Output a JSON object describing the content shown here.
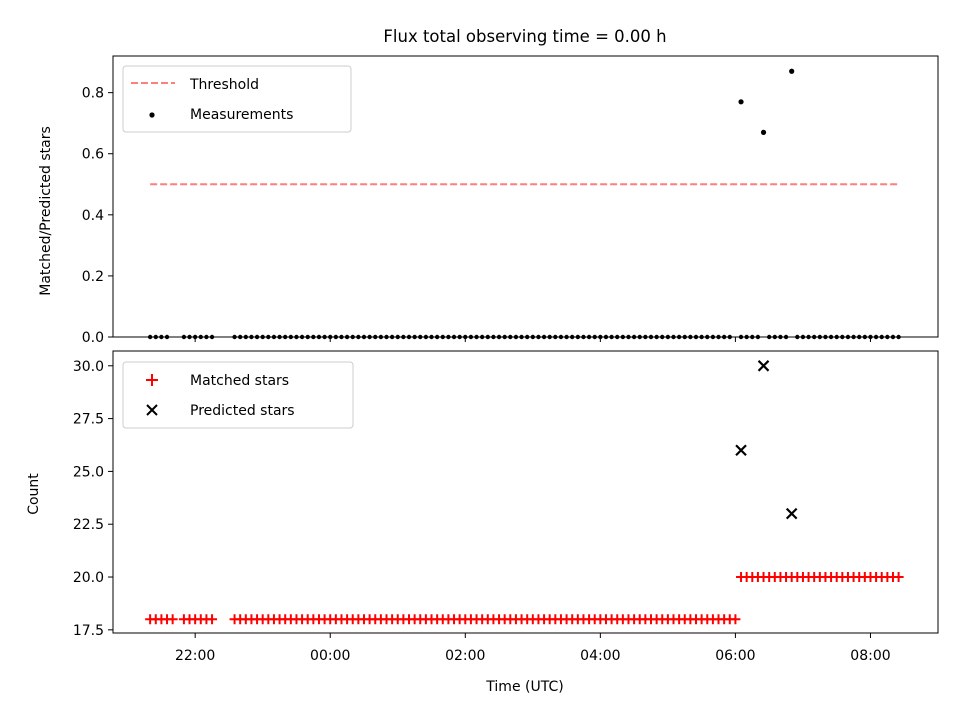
{
  "chart_data": [
    {
      "type": "scatter",
      "title": "Flux total observing time = 0.00 h",
      "ylabel": "Matched/Predicted stars",
      "ylim": [
        0,
        0.92
      ],
      "yticks": [
        0.0,
        0.2,
        0.4,
        0.6,
        0.8
      ],
      "ytick_labels": [
        "0.0",
        "0.2",
        "0.4",
        "0.6",
        "0.8"
      ],
      "legend_position": "top-left",
      "threshold": {
        "name": "Threshold",
        "x_start": "21:20",
        "x_end": "08:25",
        "y": 0.5,
        "color": "#ff7f7f",
        "style": "dashed"
      },
      "measurements": {
        "name": "Measurements",
        "color": "#000000",
        "runs": [
          {
            "start": "21:20",
            "end": "21:35",
            "y": 0.0
          },
          {
            "start": "21:50",
            "end": "22:15",
            "y": 0.0
          },
          {
            "start": "22:35",
            "end": "05:55",
            "y": 0.0
          },
          {
            "start": "06:05",
            "end": "06:20",
            "y": 0.0
          },
          {
            "start": "06:30",
            "end": "06:45",
            "y": 0.0
          },
          {
            "start": "06:55",
            "end": "08:25",
            "y": 0.0
          }
        ],
        "points": [
          {
            "x": "06:05",
            "y": 0.77
          },
          {
            "x": "06:25",
            "y": 0.67
          },
          {
            "x": "06:50",
            "y": 0.87
          }
        ]
      }
    },
    {
      "type": "scatter",
      "xlabel": "Time (UTC)",
      "ylabel": "Count",
      "ylim": [
        17.35,
        30.7
      ],
      "yticks": [
        17.5,
        20.0,
        22.5,
        25.0,
        27.5,
        30.0
      ],
      "ytick_labels": [
        "17.5",
        "20.0",
        "22.5",
        "25.0",
        "27.5",
        "30.0"
      ],
      "xticks": [
        "22:00",
        "00:00",
        "02:00",
        "04:00",
        "06:00",
        "08:00"
      ],
      "legend_position": "top-left",
      "matched": {
        "name": "Matched stars",
        "color": "#ff0000",
        "runs": [
          {
            "start": "21:20",
            "end": "21:40",
            "y": 18
          },
          {
            "start": "21:50",
            "end": "22:15",
            "y": 18
          },
          {
            "start": "22:35",
            "end": "06:00",
            "y": 18
          },
          {
            "start": "06:05",
            "end": "08:25",
            "y": 20
          }
        ]
      },
      "predicted": {
        "name": "Predicted stars",
        "color": "#000000",
        "points": [
          {
            "x": "06:05",
            "y": 26
          },
          {
            "x": "06:25",
            "y": 30
          },
          {
            "x": "06:50",
            "y": 23
          }
        ]
      }
    }
  ]
}
